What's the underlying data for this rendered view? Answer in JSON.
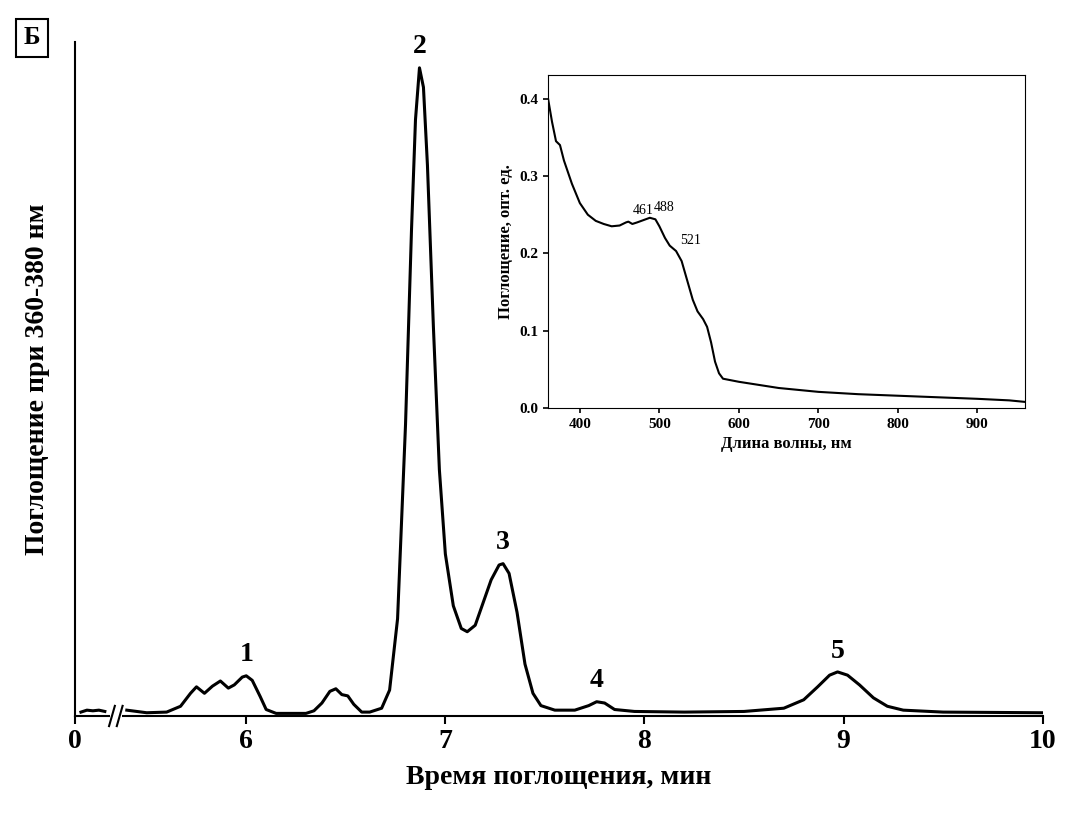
{
  "panel_label": "Б",
  "chart_data": [
    {
      "type": "line",
      "xlabel": "Время поглощения, мин",
      "ylabel": "Поглощение при 360-380 нм",
      "x": [
        0.03,
        0.06,
        0.09,
        0.12,
        0.15,
        2.8,
        5.4,
        5.45,
        5.5,
        5.6,
        5.67,
        5.72,
        5.75,
        5.79,
        5.83,
        5.87,
        5.91,
        5.94,
        5.98,
        6.0,
        6.03,
        6.07,
        6.1,
        6.15,
        6.3,
        6.34,
        6.38,
        6.42,
        6.45,
        6.48,
        6.51,
        6.54,
        6.58,
        6.62,
        6.68,
        6.72,
        6.76,
        6.8,
        6.83,
        6.85,
        6.87,
        6.89,
        6.91,
        6.94,
        6.97,
        7.0,
        7.04,
        7.08,
        7.11,
        7.15,
        7.19,
        7.23,
        7.27,
        7.29,
        7.32,
        7.36,
        7.4,
        7.44,
        7.48,
        7.55,
        7.65,
        7.72,
        7.76,
        7.8,
        7.85,
        7.95,
        8.2,
        8.5,
        8.7,
        8.8,
        8.87,
        8.93,
        8.97,
        9.02,
        9.08,
        9.15,
        9.22,
        9.3,
        9.5,
        10.0
      ],
      "values": [
        0.6,
        0.9,
        0.8,
        0.9,
        0.7,
        null,
        0.9,
        0.7,
        0.5,
        0.6,
        1.5,
        3.5,
        4.5,
        3.5,
        4.6,
        5.4,
        4.3,
        4.8,
        6.0,
        6.2,
        5.5,
        3.0,
        1.0,
        0.4,
        0.4,
        0.8,
        2.0,
        3.8,
        4.2,
        3.3,
        3.1,
        1.8,
        0.6,
        0.6,
        1.2,
        4.0,
        15.0,
        45.0,
        75.0,
        92.0,
        100.0,
        97.0,
        85.0,
        60.0,
        38.0,
        25.0,
        17.0,
        13.5,
        13.0,
        14.0,
        17.5,
        21.0,
        23.3,
        23.5,
        22.0,
        16.0,
        8.0,
        3.5,
        1.6,
        0.9,
        0.9,
        1.6,
        2.2,
        2.0,
        1.0,
        0.7,
        0.6,
        0.7,
        1.2,
        2.5,
        4.5,
        6.3,
        6.8,
        6.3,
        4.8,
        2.8,
        1.5,
        0.9,
        0.6,
        0.5
      ],
      "color": "#000000",
      "xlim": [
        0,
        10
      ],
      "xticks": [
        0,
        6,
        7,
        8,
        9,
        10
      ],
      "ylim": [
        0,
        104
      ],
      "yticks": [],
      "tick_labels": "x",
      "grid": false,
      "annotations": [
        {
          "text": "1",
          "x": 6.0
        },
        {
          "text": "2",
          "x": 6.87
        },
        {
          "text": "3",
          "x": 7.29
        },
        {
          "text": "4",
          "x": 7.76
        },
        {
          "text": "5",
          "x": 8.97
        }
      ]
    },
    {
      "type": "line",
      "xlabel": "Длина волны, нм",
      "ylabel": "Поглощение, опт. ед.",
      "x": [
        360,
        365,
        370,
        375,
        380,
        390,
        400,
        410,
        420,
        430,
        440,
        450,
        458,
        461,
        466,
        472,
        480,
        488,
        495,
        500,
        507,
        513,
        521,
        528,
        535,
        542,
        548,
        555,
        560,
        565,
        570,
        575,
        580,
        600,
        650,
        700,
        750,
        800,
        850,
        900,
        940,
        960
      ],
      "values": [
        0.4,
        0.37,
        0.345,
        0.34,
        0.32,
        0.29,
        0.265,
        0.25,
        0.242,
        0.238,
        0.235,
        0.236,
        0.24,
        0.241,
        0.238,
        0.24,
        0.243,
        0.246,
        0.244,
        0.235,
        0.22,
        0.21,
        0.203,
        0.19,
        0.165,
        0.14,
        0.125,
        0.115,
        0.105,
        0.085,
        0.06,
        0.045,
        0.038,
        0.034,
        0.026,
        0.021,
        0.018,
        0.016,
        0.014,
        0.012,
        0.01,
        0.008
      ],
      "color": "#000000",
      "xlim": [
        360,
        960
      ],
      "xticks": [
        400,
        500,
        600,
        700,
        800,
        900
      ],
      "ylim": [
        0,
        0.43
      ],
      "yticks": [
        0.0,
        0.1,
        0.2,
        0.3,
        0.4
      ],
      "grid": false,
      "annotations": [
        {
          "text": "461",
          "x": 461
        },
        {
          "text": "488",
          "x": 488
        },
        {
          "text": "521",
          "x": 521
        }
      ]
    }
  ]
}
